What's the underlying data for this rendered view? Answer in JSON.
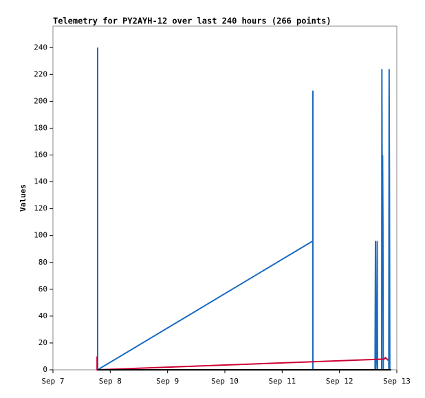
{
  "chart_data": {
    "type": "line",
    "title": "Telemetry for PY2AYH-12 over last 240 hours (266 points)",
    "y_label": "Values",
    "xlim": [
      7,
      13
    ],
    "xticks": [
      {
        "value": 7,
        "label": "Sep 7"
      },
      {
        "value": 8,
        "label": "Sep 8"
      },
      {
        "value": 9,
        "label": "Sep 9"
      },
      {
        "value": 10,
        "label": "Sep 10"
      },
      {
        "value": 11,
        "label": "Sep 11"
      },
      {
        "value": 12,
        "label": "Sep 12"
      },
      {
        "value": 13,
        "label": "Sep 13"
      }
    ],
    "ylim": [
      0,
      256
    ],
    "yticks": [
      0,
      20,
      40,
      60,
      80,
      100,
      120,
      140,
      160,
      180,
      200,
      220,
      240
    ],
    "series": [
      {
        "color": "#000000",
        "x": [
          7.78,
          12.9
        ],
        "values": [
          0,
          0
        ]
      },
      {
        "color": "#cc0033",
        "x": [
          7.77,
          7.77,
          12.78,
          12.8,
          12.83,
          12.85
        ],
        "values": [
          10,
          0,
          8,
          9,
          8,
          7
        ]
      },
      {
        "color": "#1a6bc0",
        "x": [
          7.78,
          7.78,
          11.536,
          11.536,
          11.536,
          12.62,
          12.628,
          12.634,
          12.652,
          12.658,
          12.664,
          12.736,
          12.74,
          12.746,
          12.752,
          12.758,
          12.764,
          12.86,
          12.866,
          12.872,
          12.878,
          12.892
        ],
        "values": [
          240,
          0,
          96,
          208,
          0,
          0,
          96,
          0,
          16,
          96,
          0,
          0,
          224,
          112,
          160,
          112,
          0,
          0,
          224,
          144,
          0,
          0
        ]
      }
    ]
  }
}
